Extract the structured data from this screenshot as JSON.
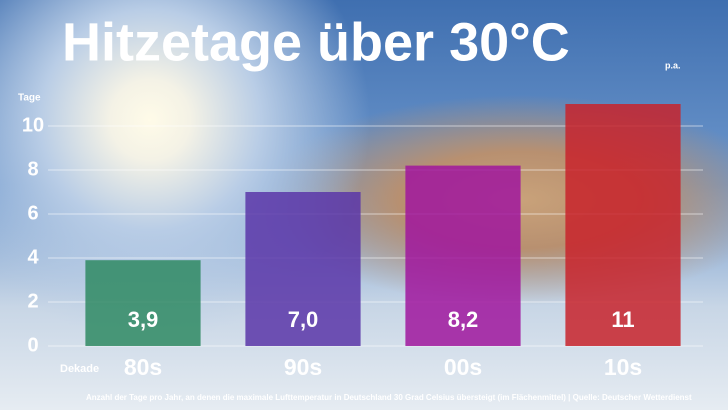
{
  "chart_data": {
    "type": "bar",
    "title": "Hitzetage über 30°C",
    "subtitle": "p.a.",
    "y_label": "Tage",
    "x_label": "Dekade",
    "categories": [
      "80s",
      "90s",
      "00s",
      "10s"
    ],
    "values": [
      3.9,
      7.0,
      8.2,
      11
    ],
    "value_labels": [
      "3,9",
      "7,0",
      "8,2",
      "11"
    ],
    "colors": [
      "#2f8a63",
      "#5b36a8",
      "#a0169e",
      "#c8232b"
    ],
    "ylim": [
      0,
      11
    ],
    "yticks": [
      0,
      2,
      4,
      6,
      8,
      10
    ],
    "grid": true,
    "footnote": "Anzahl der Tage pro Jahr, an denen die maximale Lufttemperatur in Deutschland 30 Grad Celsius übersteigt (im Flächenmittel) | Quelle: Deutscher Wetterdienst"
  }
}
